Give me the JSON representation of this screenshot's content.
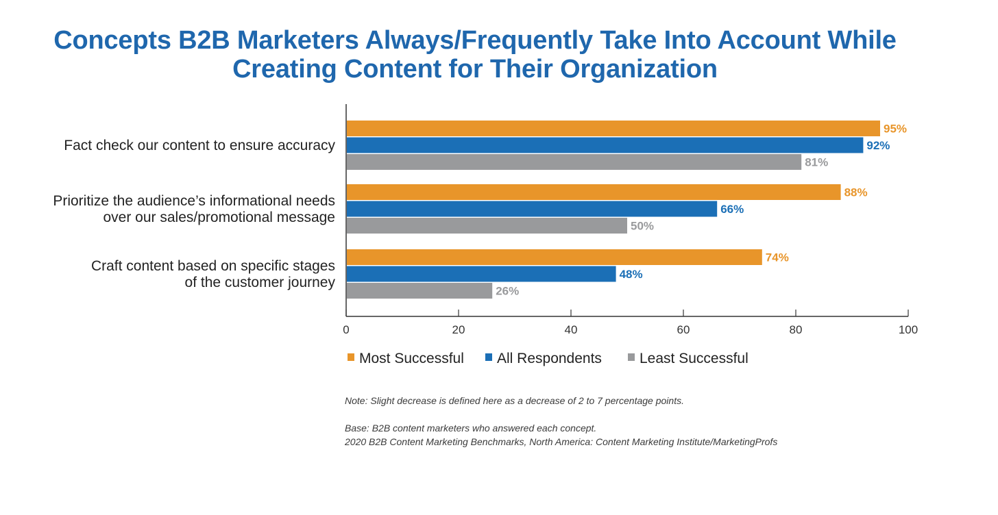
{
  "chart_data": {
    "type": "bar",
    "orientation": "horizontal",
    "title_lines": [
      "Concepts B2B Marketers Always/Frequently Take Into Account While",
      "Creating Content for Their Organization"
    ],
    "categories": [
      [
        "Fact check our content to ensure accuracy"
      ],
      [
        "Prioritize the audience’s informational needs",
        "over our sales/promotional message"
      ],
      [
        "Craft content based on specific stages",
        "of the customer journey"
      ]
    ],
    "series": [
      {
        "name": "Most Successful",
        "color": "#e8952a",
        "values": [
          95,
          88,
          74
        ],
        "labels": [
          "95%",
          "88%",
          "74%"
        ]
      },
      {
        "name": "All Respondents",
        "color": "#1b6fb6",
        "values": [
          92,
          66,
          48
        ],
        "labels": [
          "92%",
          "66%",
          "48%"
        ]
      },
      {
        "name": "Least Successful",
        "color": "#999a9c",
        "values": [
          81,
          50,
          26
        ],
        "labels": [
          "81%",
          "50%",
          "26%"
        ]
      }
    ],
    "xlim": [
      0,
      100
    ],
    "xticks": [
      0,
      20,
      40,
      60,
      80,
      100
    ],
    "legend_position": "bottom",
    "grid": false
  },
  "notes": {
    "note": "Note: Slight decrease is defined here as a decrease of 2 to 7 percentage points.",
    "base": "Base: B2B content marketers who answered each concept.",
    "source": "2020 B2B Content Marketing Benchmarks, North America: Content Marketing Institute/MarketingProfs"
  },
  "colors": {
    "title": "#1f67ad",
    "axis": "#333333",
    "text": "#222222"
  }
}
